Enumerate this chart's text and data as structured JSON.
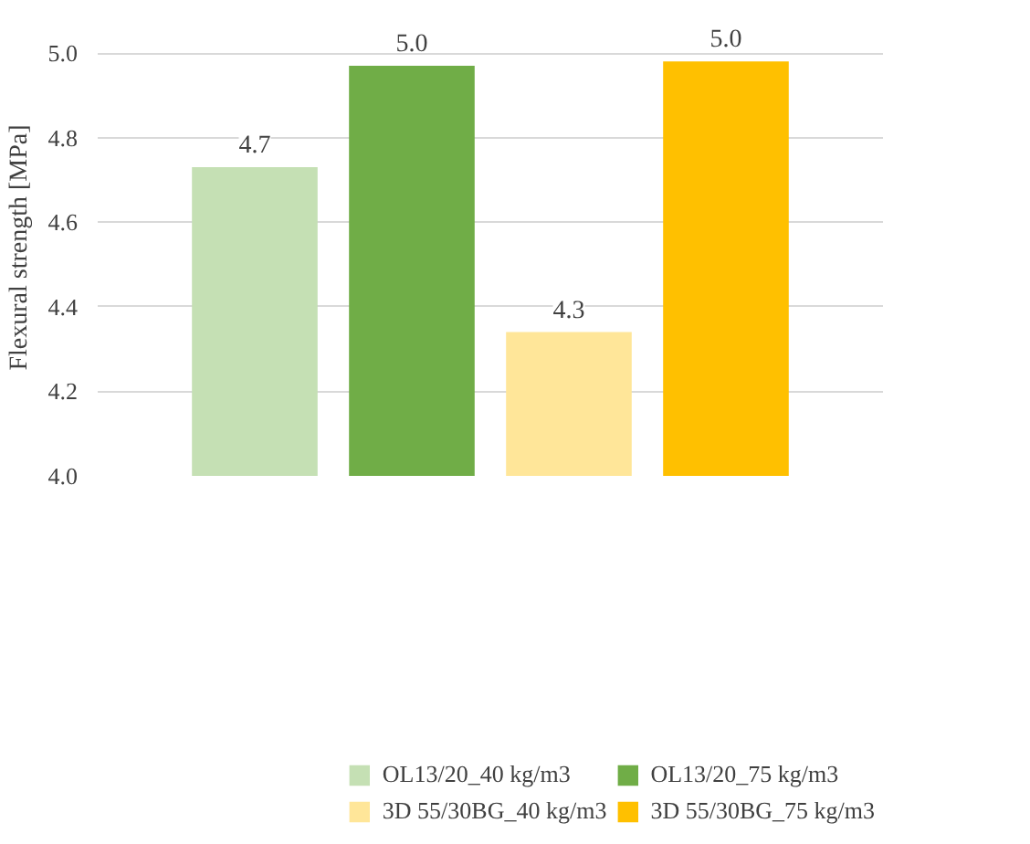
{
  "chart_data": {
    "type": "bar",
    "ylabel": "Flexural strength [MPa]",
    "categories": [
      null
    ],
    "series": [
      {
        "name": "OL13/20_40 kg/m3",
        "color": "#c5e0b4",
        "values": [
          4.73
        ],
        "value_labels": [
          "4.7"
        ]
      },
      {
        "name": "OL13/20_75 kg/m3",
        "color": "#70ad47",
        "values": [
          4.97
        ],
        "value_labels": [
          "5.0"
        ]
      },
      {
        "name": "3D 55/30BG_40 kg/m3",
        "color": "#ffe699",
        "values": [
          4.34
        ],
        "value_labels": [
          "4.3"
        ]
      },
      {
        "name": "3D 55/30BG_75 kg/m3",
        "color": "#ffc000",
        "values": [
          4.98
        ],
        "value_labels": [
          "5.0"
        ]
      }
    ],
    "ylim": [
      4.0,
      5.0
    ],
    "yticks": [
      {
        "value": 4.0,
        "label": "4.0"
      },
      {
        "value": 4.2,
        "label": "4.2"
      },
      {
        "value": 4.4,
        "label": "4.4"
      },
      {
        "value": 4.6,
        "label": "4.6"
      },
      {
        "value": 4.8,
        "label": "4.8"
      },
      {
        "value": 5.0,
        "label": "5.0"
      }
    ],
    "grid": "y",
    "legend": "bottom"
  }
}
